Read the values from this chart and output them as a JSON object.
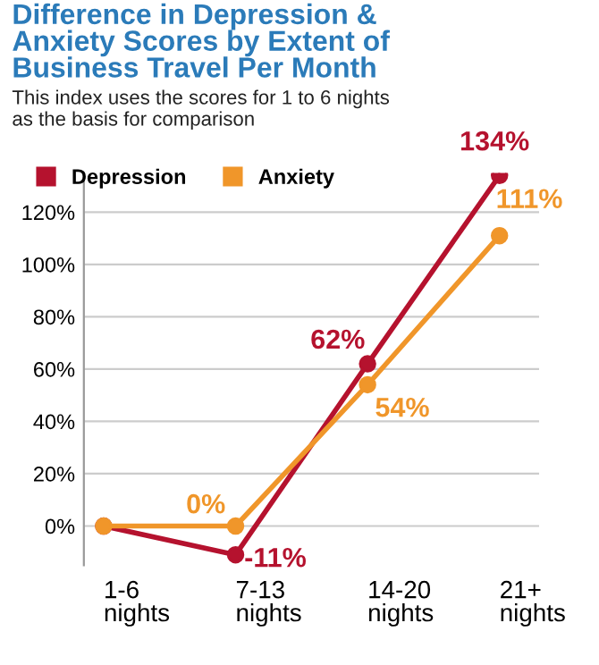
{
  "chart_data": {
    "type": "line",
    "title": "Difference in Depression &\nAnxiety Scores by Extent of\nBusiness Travel Per Month",
    "subtitle": "This index uses the scores for 1 to 6 nights\nas the basis for comparison",
    "categories": [
      "1-6\nnights",
      "7-13\nnights",
      "14-20\nnights",
      "21+\nnights"
    ],
    "series": [
      {
        "name": "Depression",
        "color": "#b5122e",
        "values": [
          0,
          -11,
          62,
          134
        ],
        "value_labels": [
          null,
          "-11%",
          "62%",
          "134%"
        ]
      },
      {
        "name": "Anxiety",
        "color": "#f0962a",
        "values": [
          0,
          0,
          54,
          111
        ],
        "value_labels": [
          null,
          "0%",
          "54%",
          "111%"
        ]
      }
    ],
    "ylim": [
      -15,
      135
    ],
    "yticks": [
      {
        "value": 0,
        "label": "0%"
      },
      {
        "value": 20,
        "label": "20%"
      },
      {
        "value": 40,
        "label": "40%"
      },
      {
        "value": 60,
        "label": "60%"
      },
      {
        "value": 80,
        "label": "80%"
      },
      {
        "value": 100,
        "label": "100%"
      },
      {
        "value": 120,
        "label": "120%"
      }
    ],
    "grid": "y",
    "legend": "top left",
    "marker": "circle",
    "line_style": "solid"
  }
}
